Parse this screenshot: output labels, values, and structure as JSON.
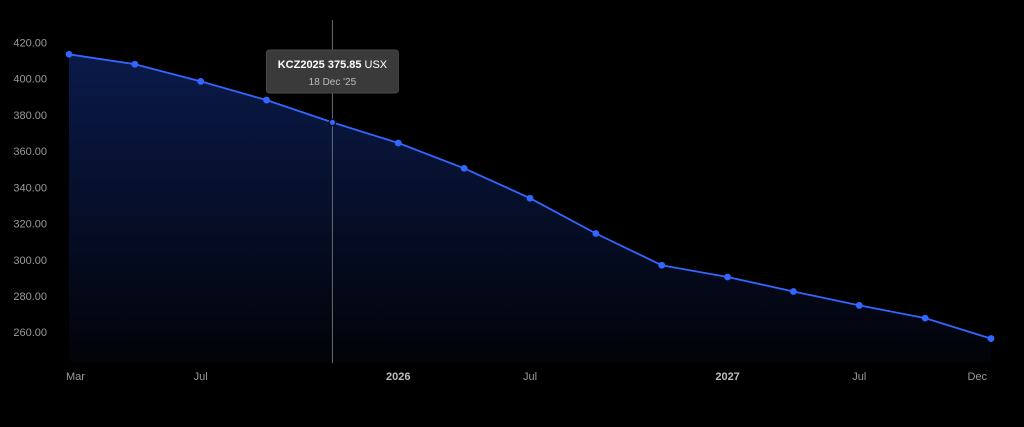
{
  "chart_data": {
    "type": "area",
    "title": "",
    "xlabel": "",
    "ylabel": "",
    "ylim": [
      243,
      428
    ],
    "y_ticks": [
      "420.00",
      "400.00",
      "380.00",
      "360.00",
      "340.00",
      "320.00",
      "300.00",
      "280.00",
      "260.00"
    ],
    "x_ticks": [
      {
        "label": "Mar",
        "index": 0,
        "bold": false
      },
      {
        "label": "Jul",
        "index": 2,
        "bold": false
      },
      {
        "label": "2026",
        "index": 5,
        "bold": true
      },
      {
        "label": "Jul",
        "index": 7,
        "bold": false
      },
      {
        "label": "2027",
        "index": 10,
        "bold": true
      },
      {
        "label": "Jul",
        "index": 12,
        "bold": false
      },
      {
        "label": "Dec",
        "index": 14,
        "bold": false
      }
    ],
    "series": [
      {
        "x": [
          "Mar 2025",
          "May 2025",
          "Jul 2025",
          "Sep 2025",
          "Dec 2025",
          "Mar 2026",
          "May 2026",
          "Jul 2026",
          "Sep 2026",
          "Dec 2026",
          "Mar 2027",
          "May 2027",
          "Jul 2027",
          "Sep 2027",
          "Dec 2027"
        ],
        "values": [
          413.5,
          408.0,
          398.5,
          388.2,
          375.85,
          364.5,
          350.5,
          334.0,
          314.5,
          297.0,
          290.5,
          282.5,
          274.8,
          267.8,
          256.5
        ]
      }
    ],
    "highlight_index": 4,
    "grid": false,
    "legend": "none",
    "colors": {
      "line": "#3366ff",
      "area_top": "#0a1a4a",
      "area_bottom": "#020308",
      "background": "#000000"
    }
  },
  "tooltip": {
    "symbol_value": "KCZ2025 375.85",
    "unit": "USX",
    "date": "18 Dec '25"
  }
}
